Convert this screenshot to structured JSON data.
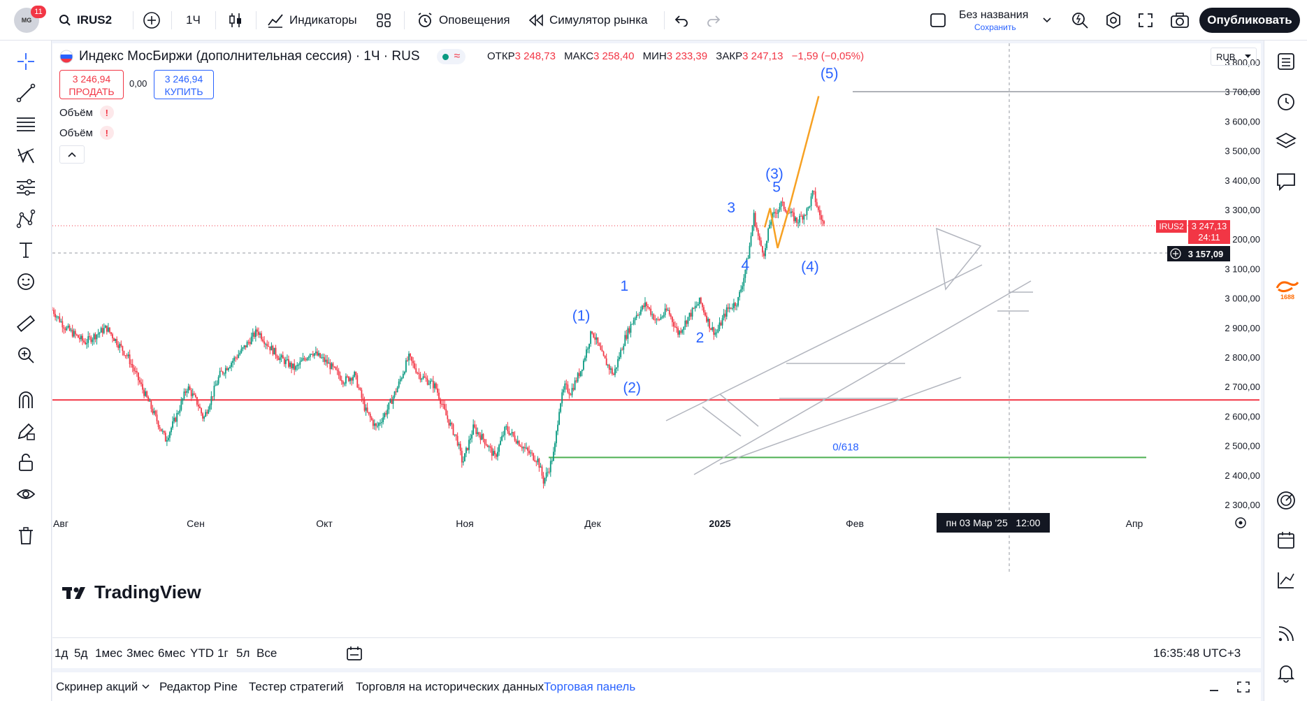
{
  "topbar": {
    "badge_count": "11",
    "avatar_text": "MG",
    "symbol": "IRUS2",
    "interval": "1Ч",
    "indicators": "Индикаторы",
    "alerts": "Оповещения",
    "replay": "Симулятор рынка",
    "layout_name": "Без названия",
    "layout_status": "Сохранить",
    "publish": "Опубликовать"
  },
  "legend": {
    "title": "Индекс МосБиржи (дополнительная сессия) · 1Ч · RUS",
    "open_label": "ОТКР",
    "open": "3 248,73",
    "high_label": "МАКС",
    "high": "3 258,40",
    "low_label": "МИН",
    "low": "3 233,39",
    "close_label": "ЗАКР",
    "close": "3 247,13",
    "change": "−1,59 (−0,05%)",
    "sell_price": "3 246,94",
    "sell_label": "ПРОДАТЬ",
    "spread": "0,00",
    "buy_price": "3 246,94",
    "buy_label": "КУПИТЬ",
    "volume1": "Объём",
    "volume2": "Объём",
    "currency": "RUB",
    "logo": "TradingView"
  },
  "chart_data": {
    "type": "candlestick",
    "symbol": "IRUS2",
    "interval": "1H",
    "ylim": [
      2270,
      3860
    ],
    "y_ticks": [
      "3 800,00",
      "3 700,00",
      "3 600,00",
      "3 500,00",
      "3 400,00",
      "3 300,00",
      "3 200,00",
      "3 100,00",
      "3 000,00",
      "2 900,00",
      "2 800,00",
      "2 700,00",
      "2 600,00",
      "2 500,00",
      "2 400,00",
      "2 300,00"
    ],
    "x_ticks": [
      "Авг",
      "Сен",
      "Окт",
      "Ноя",
      "Дек",
      "2025",
      "Фев",
      "Апр"
    ],
    "x_tick_pos": [
      0,
      0.1,
      0.2,
      0.3,
      0.4,
      0.5,
      0.6,
      0.8
    ],
    "price_path": [
      [
        0.0,
        2960
      ],
      [
        0.012,
        2900
      ],
      [
        0.03,
        2850
      ],
      [
        0.05,
        2900
      ],
      [
        0.07,
        2800
      ],
      [
        0.085,
        2680
      ],
      [
        0.1,
        2560
      ],
      [
        0.105,
        2520
      ],
      [
        0.115,
        2600
      ],
      [
        0.125,
        2700
      ],
      [
        0.135,
        2640
      ],
      [
        0.14,
        2590
      ],
      [
        0.155,
        2740
      ],
      [
        0.175,
        2820
      ],
      [
        0.19,
        2890
      ],
      [
        0.2,
        2840
      ],
      [
        0.21,
        2800
      ],
      [
        0.225,
        2760
      ],
      [
        0.24,
        2820
      ],
      [
        0.255,
        2780
      ],
      [
        0.27,
        2720
      ],
      [
        0.28,
        2740
      ],
      [
        0.29,
        2620
      ],
      [
        0.3,
        2560
      ],
      [
        0.31,
        2620
      ],
      [
        0.32,
        2700
      ],
      [
        0.33,
        2800
      ],
      [
        0.34,
        2740
      ],
      [
        0.355,
        2700
      ],
      [
        0.365,
        2600
      ],
      [
        0.375,
        2520
      ],
      [
        0.38,
        2440
      ],
      [
        0.39,
        2560
      ],
      [
        0.4,
        2520
      ],
      [
        0.41,
        2460
      ],
      [
        0.42,
        2560
      ],
      [
        0.43,
        2520
      ],
      [
        0.44,
        2480
      ],
      [
        0.45,
        2450
      ],
      [
        0.455,
        2380
      ],
      [
        0.46,
        2420
      ],
      [
        0.465,
        2480
      ],
      [
        0.47,
        2640
      ],
      [
        0.475,
        2700
      ],
      [
        0.48,
        2680
      ],
      [
        0.49,
        2760
      ],
      [
        0.5,
        2890
      ],
      [
        0.51,
        2800
      ],
      [
        0.52,
        2740
      ],
      [
        0.53,
        2860
      ],
      [
        0.54,
        2940
      ],
      [
        0.55,
        2980
      ],
      [
        0.56,
        2920
      ],
      [
        0.57,
        2960
      ],
      [
        0.58,
        2880
      ],
      [
        0.59,
        2940
      ],
      [
        0.6,
        2990
      ],
      [
        0.61,
        2900
      ],
      [
        0.615,
        2880
      ],
      [
        0.625,
        2960
      ],
      [
        0.635,
        2990
      ],
      [
        0.64,
        3060
      ],
      [
        0.645,
        3150
      ],
      [
        0.65,
        3280
      ],
      [
        0.655,
        3190
      ],
      [
        0.66,
        3150
      ],
      [
        0.665,
        3260
      ],
      [
        0.675,
        3320
      ],
      [
        0.69,
        3260
      ],
      [
        0.7,
        3300
      ],
      [
        0.705,
        3360
      ],
      [
        0.71,
        3290
      ],
      [
        0.715,
        3247
      ]
    ],
    "last_price": "3 247,13",
    "last_countdown": "24:11",
    "crosshair_price": "3 157,09",
    "crosshair_time": "пн 03 Мар '25   12:00",
    "symbol_label": "IRUS2",
    "horizontal_lines": [
      {
        "price": 3700,
        "color": "#9598a1"
      },
      {
        "price": 2655,
        "color": "#f23645"
      },
      {
        "price": 2460,
        "color": "#4caf50",
        "label": "0/618"
      }
    ],
    "wave_labels": [
      {
        "text": "(1)",
        "x": 0.49,
        "y": 2925
      },
      {
        "text": "(2)",
        "x": 0.537,
        "y": 2680
      },
      {
        "text": "(3)",
        "x": 0.669,
        "y": 3405
      },
      {
        "text": "5",
        "x": 0.671,
        "y": 3360
      },
      {
        "text": "(4)",
        "x": 0.702,
        "y": 3090
      },
      {
        "text": "(5)",
        "x": 0.72,
        "y": 3745
      },
      {
        "text": "1",
        "x": 0.53,
        "y": 3025
      },
      {
        "text": "2",
        "x": 0.6,
        "y": 2850
      },
      {
        "text": "3",
        "x": 0.629,
        "y": 3290
      },
      {
        "text": "4",
        "x": 0.642,
        "y": 3095
      }
    ],
    "projection": [
      [
        0.66,
        3240
      ],
      [
        0.665,
        3305
      ],
      [
        0.672,
        3170
      ],
      [
        0.683,
        3310
      ],
      [
        0.71,
        3685
      ]
    ],
    "projection_color": "#f7a123"
  },
  "timeframes": {
    "items": [
      "1д",
      "5д",
      "1мес",
      "3мес",
      "6мес",
      "YTD",
      "1г",
      "5л",
      "Все"
    ],
    "clock": "16:35:48 UTC+3"
  },
  "bottom_tabs": [
    "Скринер акций",
    "Редактор Pine",
    "Тестер стратегий",
    "Торговля на исторических данных",
    "Торговая панель"
  ]
}
